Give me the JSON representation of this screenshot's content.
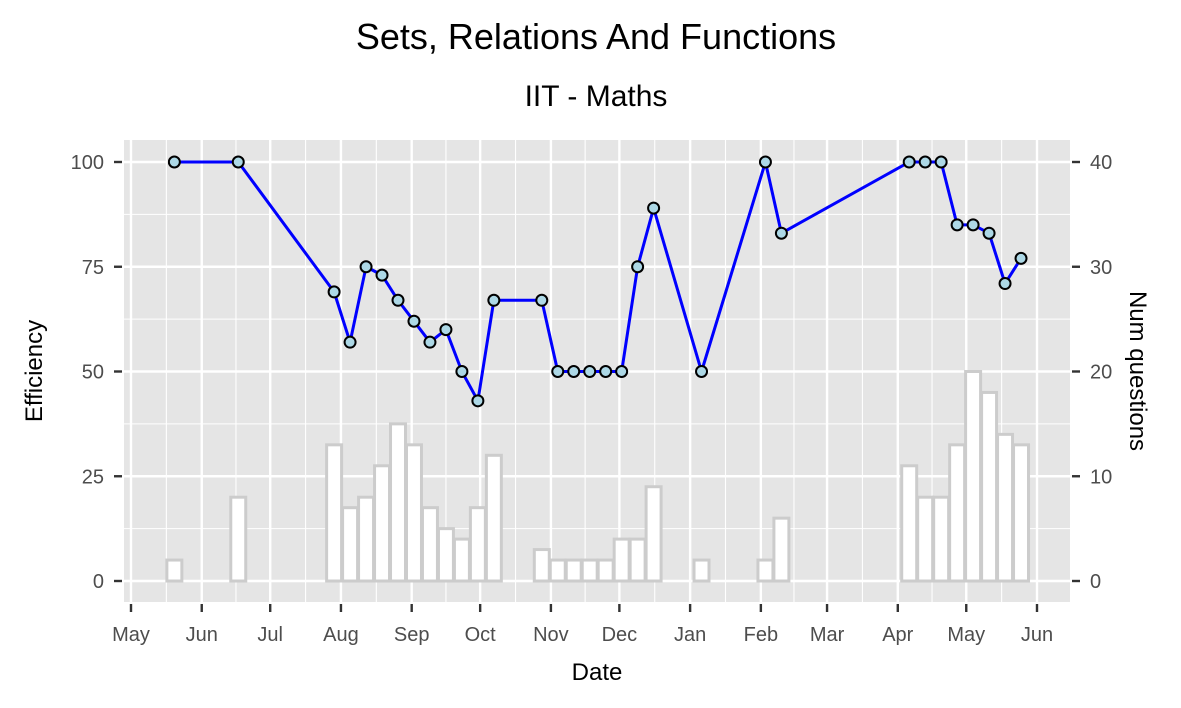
{
  "chart_data": {
    "type": "line",
    "title": "Sets, Relations And Functions",
    "subtitle": "IIT - Maths",
    "xlabel": "Date",
    "ylabel": "Efficiency",
    "y2label": "Num questions",
    "ylim": [
      0,
      100
    ],
    "y2lim": [
      0,
      40
    ],
    "xlim": [
      "2023-05-01",
      "2024-06-01"
    ],
    "yticks": [
      "0",
      "25",
      "50",
      "75",
      "100"
    ],
    "y2ticks": [
      "0",
      "10",
      "20",
      "30",
      "40"
    ],
    "xticks": [
      {
        "label": "May",
        "date": "2023-05-01"
      },
      {
        "label": "Jun",
        "date": "2023-06-01"
      },
      {
        "label": "Jul",
        "date": "2023-07-01"
      },
      {
        "label": "Aug",
        "date": "2023-08-01"
      },
      {
        "label": "Sep",
        "date": "2023-09-01"
      },
      {
        "label": "Oct",
        "date": "2023-10-01"
      },
      {
        "label": "Nov",
        "date": "2023-11-01"
      },
      {
        "label": "Dec",
        "date": "2023-12-01"
      },
      {
        "label": "Jan",
        "date": "2024-01-01"
      },
      {
        "label": "Feb",
        "date": "2024-02-01"
      },
      {
        "label": "Mar",
        "date": "2024-03-01"
      },
      {
        "label": "Apr",
        "date": "2024-04-01"
      },
      {
        "label": "May",
        "date": "2024-05-01"
      },
      {
        "label": "Jun",
        "date": "2024-06-01"
      }
    ],
    "series": [
      {
        "kind": "bars",
        "axis": "right",
        "fill": "#ffffff",
        "stroke": "#cccccc",
        "points": [
          {
            "x": "2023-05-20",
            "y": 2
          },
          {
            "x": "2023-06-17",
            "y": 8
          },
          {
            "x": "2023-07-29",
            "y": 13
          },
          {
            "x": "2023-08-05",
            "y": 7
          },
          {
            "x": "2023-08-12",
            "y": 8
          },
          {
            "x": "2023-08-19",
            "y": 11
          },
          {
            "x": "2023-08-26",
            "y": 15
          },
          {
            "x": "2023-09-02",
            "y": 13
          },
          {
            "x": "2023-09-09",
            "y": 7
          },
          {
            "x": "2023-09-16",
            "y": 5
          },
          {
            "x": "2023-09-23",
            "y": 4
          },
          {
            "x": "2023-09-30",
            "y": 7
          },
          {
            "x": "2023-10-07",
            "y": 12
          },
          {
            "x": "2023-10-28",
            "y": 3
          },
          {
            "x": "2023-11-04",
            "y": 2
          },
          {
            "x": "2023-11-11",
            "y": 2
          },
          {
            "x": "2023-11-18",
            "y": 2
          },
          {
            "x": "2023-11-25",
            "y": 2
          },
          {
            "x": "2023-12-02",
            "y": 4
          },
          {
            "x": "2023-12-09",
            "y": 4
          },
          {
            "x": "2023-12-16",
            "y": 9
          },
          {
            "x": "2024-01-06",
            "y": 2
          },
          {
            "x": "2024-02-03",
            "y": 2
          },
          {
            "x": "2024-02-10",
            "y": 6
          },
          {
            "x": "2024-04-06",
            "y": 11
          },
          {
            "x": "2024-04-13",
            "y": 8
          },
          {
            "x": "2024-04-20",
            "y": 8
          },
          {
            "x": "2024-04-27",
            "y": 13
          },
          {
            "x": "2024-05-04",
            "y": 20
          },
          {
            "x": "2024-05-11",
            "y": 18
          },
          {
            "x": "2024-05-18",
            "y": 14
          },
          {
            "x": "2024-05-25",
            "y": 13
          }
        ]
      },
      {
        "kind": "line",
        "axis": "left",
        "color": "#0000ff",
        "marker_fill": "#add8e6",
        "points": [
          {
            "x": "2023-05-20",
            "y": 100
          },
          {
            "x": "2023-06-17",
            "y": 100
          },
          {
            "x": "2023-07-29",
            "y": 69
          },
          {
            "x": "2023-08-05",
            "y": 57
          },
          {
            "x": "2023-08-12",
            "y": 75
          },
          {
            "x": "2023-08-19",
            "y": 73
          },
          {
            "x": "2023-08-26",
            "y": 67
          },
          {
            "x": "2023-09-02",
            "y": 62
          },
          {
            "x": "2023-09-09",
            "y": 57
          },
          {
            "x": "2023-09-16",
            "y": 60
          },
          {
            "x": "2023-09-23",
            "y": 50
          },
          {
            "x": "2023-09-30",
            "y": 43
          },
          {
            "x": "2023-10-07",
            "y": 67
          },
          {
            "x": "2023-10-28",
            "y": 67
          },
          {
            "x": "2023-11-04",
            "y": 50
          },
          {
            "x": "2023-11-11",
            "y": 50
          },
          {
            "x": "2023-11-18",
            "y": 50
          },
          {
            "x": "2023-11-25",
            "y": 50
          },
          {
            "x": "2023-12-02",
            "y": 50
          },
          {
            "x": "2023-12-09",
            "y": 75
          },
          {
            "x": "2023-12-16",
            "y": 89
          },
          {
            "x": "2024-01-06",
            "y": 50
          },
          {
            "x": "2024-02-03",
            "y": 100
          },
          {
            "x": "2024-02-10",
            "y": 83
          },
          {
            "x": "2024-04-06",
            "y": 100
          },
          {
            "x": "2024-04-13",
            "y": 100
          },
          {
            "x": "2024-04-20",
            "y": 100
          },
          {
            "x": "2024-04-27",
            "y": 85
          },
          {
            "x": "2024-05-04",
            "y": 85
          },
          {
            "x": "2024-05-11",
            "y": 83
          },
          {
            "x": "2024-05-18",
            "y": 71
          },
          {
            "x": "2024-05-25",
            "y": 77
          }
        ]
      }
    ],
    "grid": true,
    "panel_background": "#e5e5e5"
  }
}
